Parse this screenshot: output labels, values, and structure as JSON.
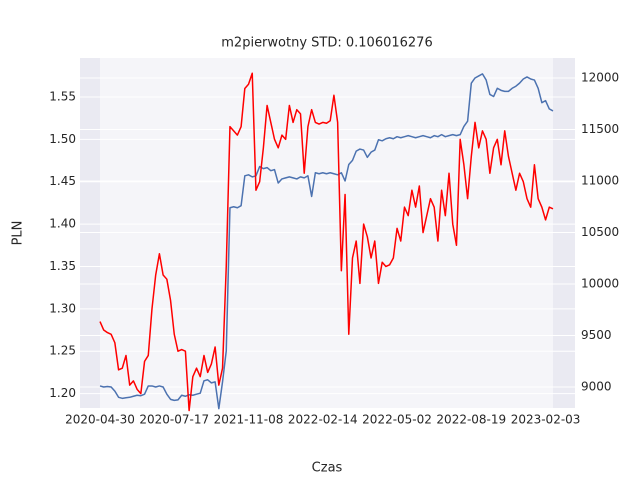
{
  "chart_data": {
    "type": "line",
    "title": "m2pierwotny STD: 0.106016276",
    "x_label": "Czas",
    "y_label": "PLN",
    "categories": [
      "2020-04-30",
      null,
      null,
      null,
      null,
      null,
      null,
      null,
      null,
      null,
      null,
      null,
      null,
      null,
      null,
      null,
      null,
      null,
      null,
      null,
      "2020-07-17",
      null,
      null,
      null,
      null,
      null,
      null,
      null,
      null,
      null,
      null,
      null,
      null,
      null,
      null,
      null,
      null,
      null,
      null,
      null,
      "2021-11-08",
      null,
      null,
      null,
      null,
      null,
      null,
      null,
      null,
      null,
      null,
      null,
      null,
      null,
      null,
      null,
      null,
      null,
      null,
      null,
      "2022-02-14",
      null,
      null,
      null,
      null,
      null,
      null,
      null,
      null,
      null,
      null,
      null,
      null,
      null,
      null,
      null,
      null,
      null,
      null,
      null,
      "2022-05-02",
      null,
      null,
      null,
      null,
      null,
      null,
      null,
      null,
      null,
      null,
      null,
      null,
      null,
      null,
      null,
      null,
      null,
      null,
      null,
      "2022-08-19",
      null,
      null,
      null,
      null,
      null,
      null,
      null,
      null,
      null,
      null,
      null,
      null,
      null,
      null,
      null,
      null,
      null,
      null,
      null,
      "2023-02-03",
      null,
      null
    ],
    "series": [
      {
        "color": "#4c72b0",
        "axis": "y2",
        "values": [
          9010,
          9000,
          9005,
          9000,
          8960,
          8900,
          8890,
          8895,
          8900,
          8910,
          8920,
          8915,
          8930,
          9010,
          9010,
          9000,
          9010,
          9000,
          8930,
          8880,
          8870,
          8875,
          8920,
          8910,
          8925,
          8920,
          8930,
          8940,
          9060,
          9070,
          9040,
          9050,
          8790,
          9050,
          9350,
          10740,
          10750,
          10740,
          10760,
          11050,
          11060,
          11040,
          11050,
          11140,
          11120,
          11130,
          11100,
          11110,
          10980,
          11020,
          11030,
          11040,
          11030,
          11020,
          11040,
          11030,
          11050,
          10850,
          11080,
          11070,
          11080,
          11070,
          11080,
          11070,
          11060,
          11080,
          11000,
          11160,
          11200,
          11290,
          11310,
          11300,
          11230,
          11280,
          11300,
          11400,
          11390,
          11410,
          11420,
          11410,
          11430,
          11420,
          11430,
          11440,
          11430,
          11420,
          11430,
          11440,
          11430,
          11420,
          11440,
          11430,
          11450,
          11430,
          11440,
          11450,
          11440,
          11450,
          11530,
          11580,
          11950,
          12000,
          12020,
          12040,
          11980,
          11840,
          11820,
          11900,
          11880,
          11870,
          11870,
          11900,
          11920,
          11950,
          11990,
          12010,
          11990,
          11980,
          11900,
          11760,
          11780,
          11700,
          11680
        ]
      },
      {
        "color": "#ff0000",
        "values": [
          1.285,
          1.275,
          1.272,
          1.27,
          1.26,
          1.228,
          1.23,
          1.245,
          1.21,
          1.215,
          1.205,
          1.2,
          1.238,
          1.245,
          1.3,
          1.34,
          1.365,
          1.34,
          1.335,
          1.31,
          1.27,
          1.25,
          1.252,
          1.25,
          1.18,
          1.22,
          1.23,
          1.22,
          1.245,
          1.225,
          1.235,
          1.255,
          1.21,
          1.23,
          1.35,
          1.515,
          1.51,
          1.505,
          1.515,
          1.56,
          1.565,
          1.578,
          1.44,
          1.45,
          1.49,
          1.54,
          1.52,
          1.5,
          1.49,
          1.505,
          1.5,
          1.54,
          1.52,
          1.535,
          1.53,
          1.46,
          1.515,
          1.535,
          1.52,
          1.518,
          1.52,
          1.519,
          1.522,
          1.552,
          1.52,
          1.345,
          1.435,
          1.27,
          1.36,
          1.38,
          1.33,
          1.4,
          1.385,
          1.36,
          1.38,
          1.33,
          1.355,
          1.35,
          1.352,
          1.36,
          1.395,
          1.38,
          1.42,
          1.41,
          1.44,
          1.42,
          1.445,
          1.39,
          1.41,
          1.43,
          1.42,
          1.38,
          1.44,
          1.41,
          1.46,
          1.4,
          1.375,
          1.5,
          1.47,
          1.43,
          1.48,
          1.52,
          1.49,
          1.51,
          1.5,
          1.46,
          1.49,
          1.5,
          1.47,
          1.51,
          1.48,
          1.46,
          1.44,
          1.46,
          1.45,
          1.43,
          1.42,
          1.47,
          1.43,
          1.42,
          1.405,
          1.42,
          1.418
        ]
      }
    ],
    "ylim": [
      1.183,
      1.596
    ],
    "yticks": [
      {
        "value": 1.2,
        "label": "1.20"
      },
      1.25,
      {
        "value": 1.3,
        "label": "1.30"
      },
      1.35,
      {
        "value": 1.4,
        "label": "1.40"
      },
      1.45,
      {
        "value": 1.5,
        "label": "1.50"
      },
      1.55
    ],
    "y2lim": [
      8796,
      12194
    ],
    "y2ticks": [
      9000,
      9500,
      10000,
      10500,
      11000,
      11500,
      12000
    ],
    "grid": true
  }
}
